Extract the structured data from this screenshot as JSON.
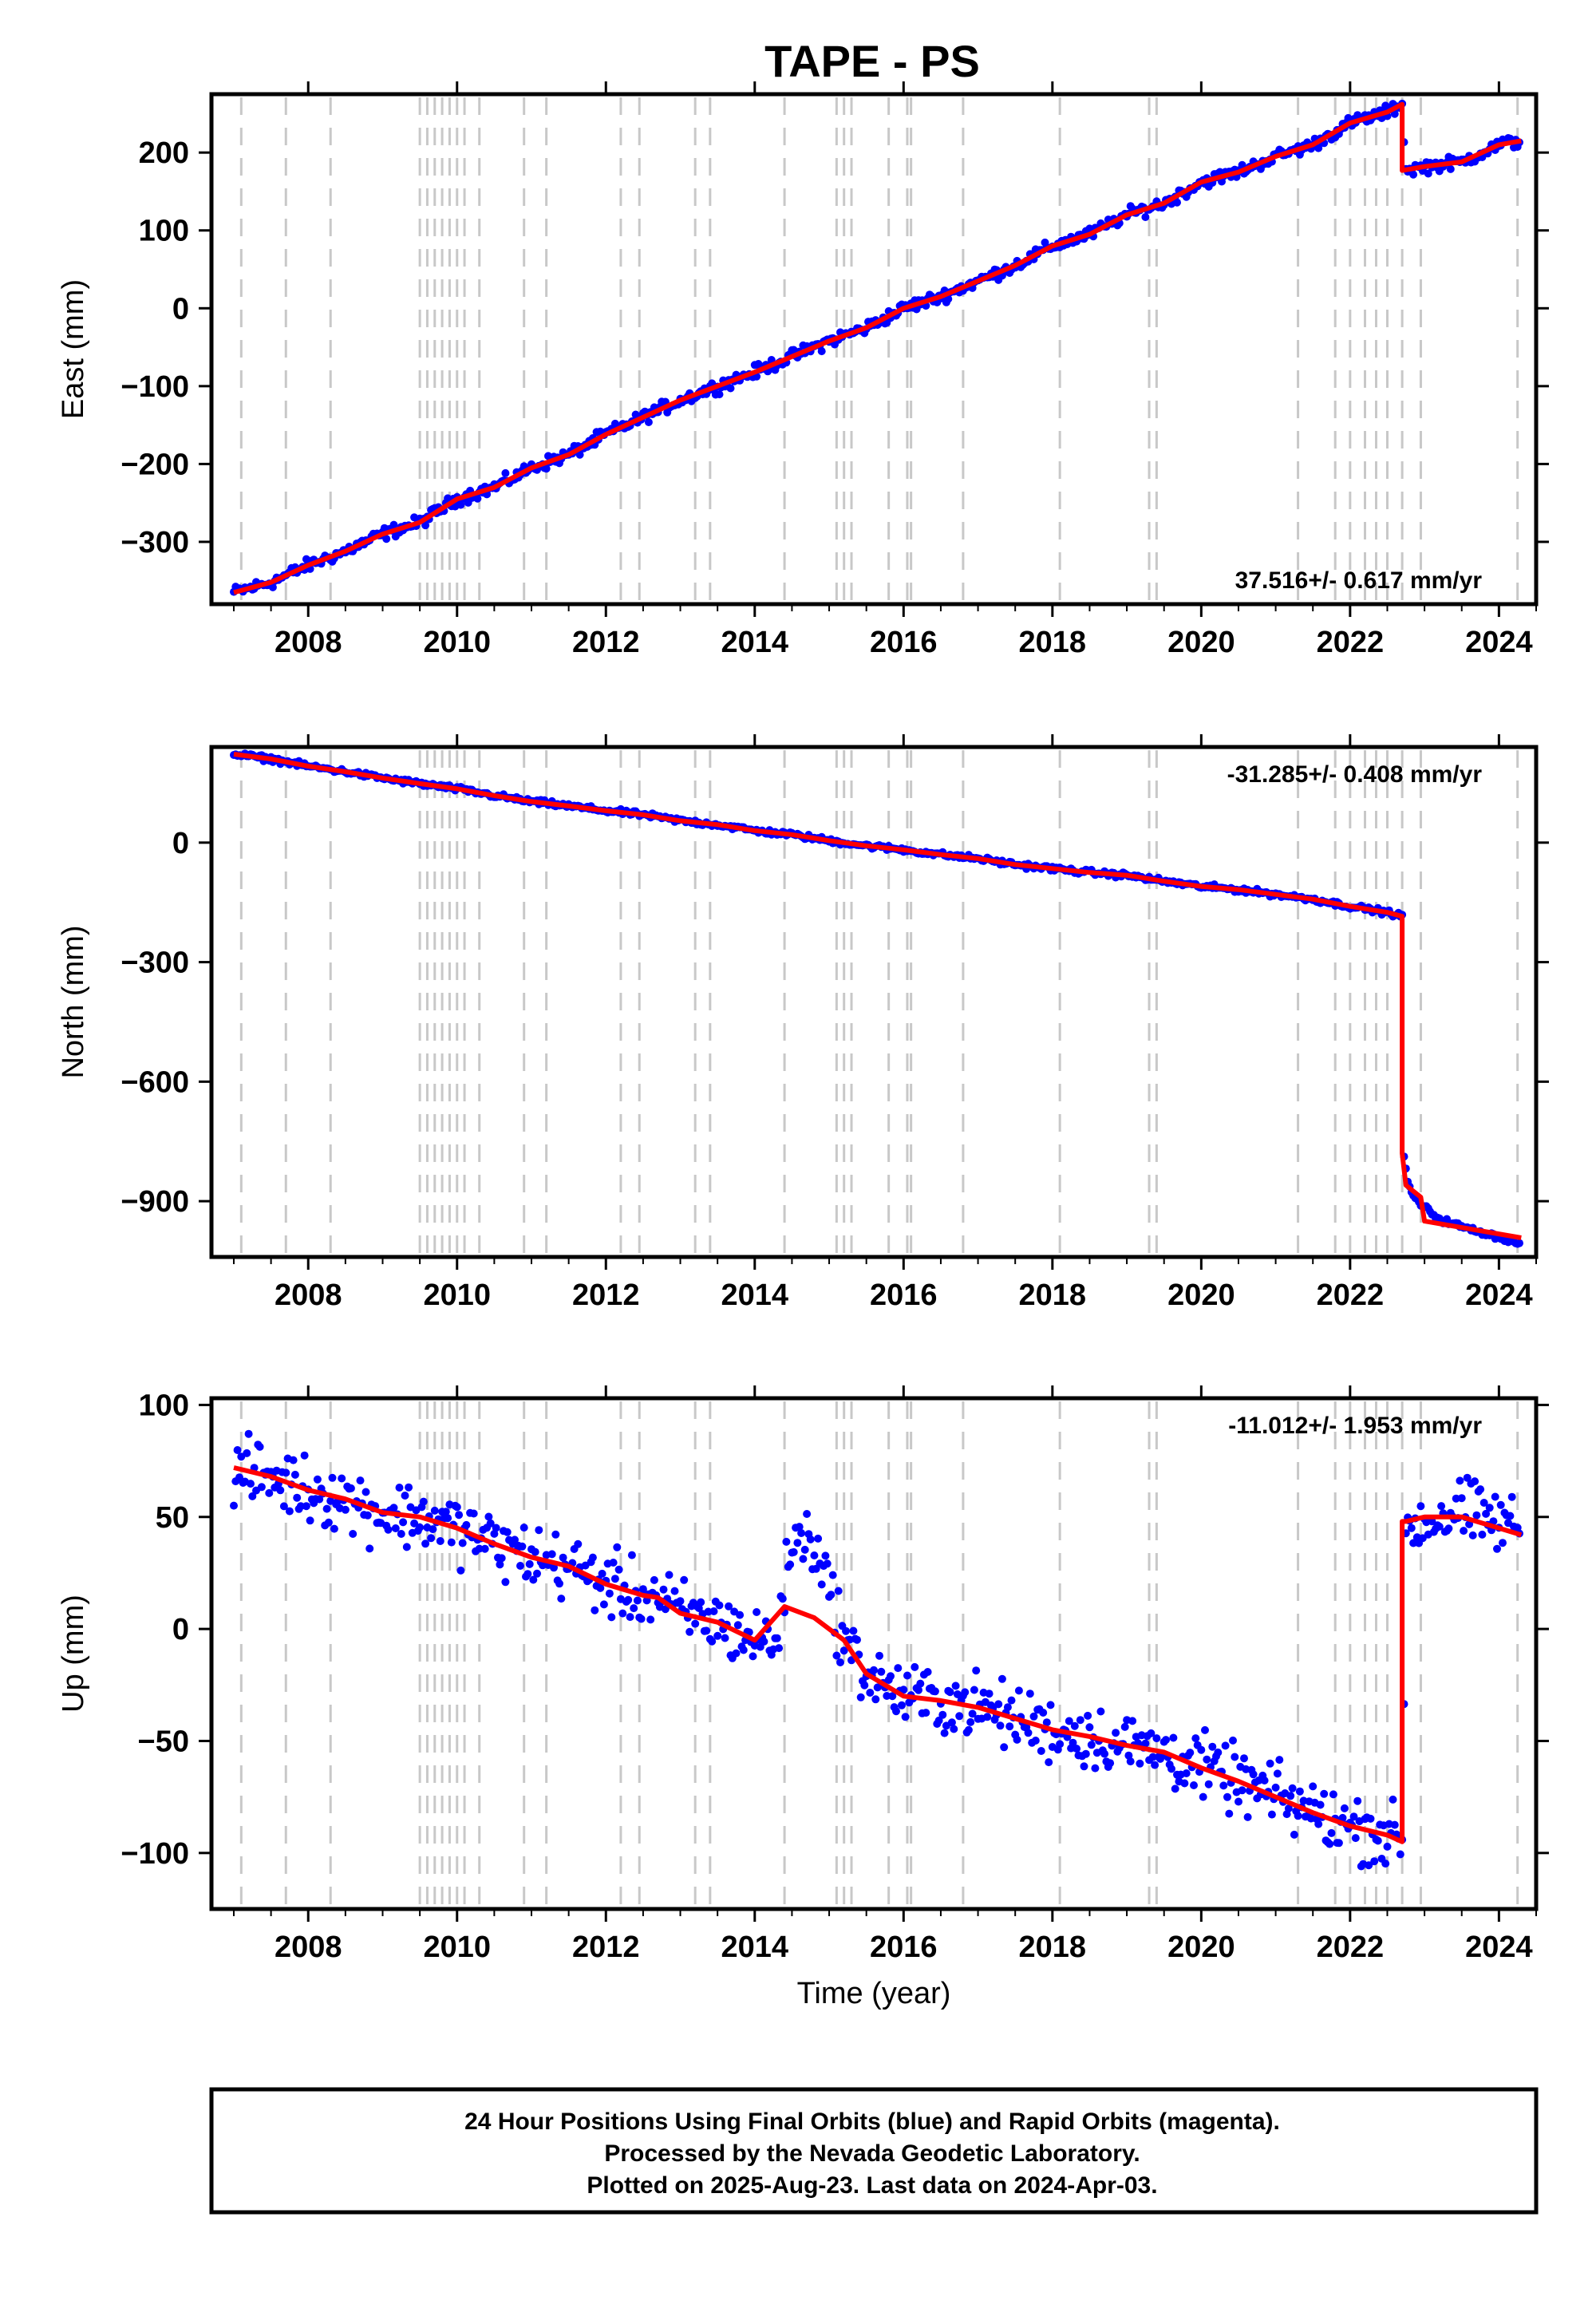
{
  "page_title": "TAPE - PS",
  "footer": {
    "line1": "24 Hour Positions Using Final Orbits (blue) and Rapid Orbits (magenta).",
    "line2": "Processed by the Nevada Geodetic Laboratory.",
    "line3": "Plotted on 2025-Aug-23. Last data on 2024-Apr-03."
  },
  "colors": {
    "data": "#0000ff",
    "model": "#ff0000",
    "event_lines": "#c8c8c8",
    "frame": "#000000"
  },
  "chart_data": [
    {
      "type": "scatter",
      "title": "TAPE - PS",
      "xlabel": "",
      "ylabel": "East (mm)",
      "xlim": [
        2006.7,
        2024.5
      ],
      "ylim": [
        -380,
        275
      ],
      "xticks": [
        2008,
        2010,
        2012,
        2014,
        2016,
        2018,
        2020,
        2022,
        2024
      ],
      "yticks": [
        -300,
        -200,
        -100,
        0,
        100,
        200
      ],
      "rate_label": "37.516+/- 0.617 mm/yr",
      "event_lines_x": [
        2007.1,
        2007.7,
        2008.3,
        2009.5,
        2009.6,
        2009.7,
        2009.8,
        2009.9,
        2010.0,
        2010.1,
        2010.3,
        2010.9,
        2011.2,
        2012.2,
        2012.45,
        2013.2,
        2013.4,
        2014.4,
        2015.1,
        2015.2,
        2015.3,
        2015.8,
        2016.05,
        2016.1,
        2016.8,
        2018.1,
        2019.3,
        2019.4,
        2021.3,
        2021.8,
        2022.0,
        2022.2,
        2022.35,
        2022.5,
        2022.7,
        2022.95,
        2024.25
      ],
      "series": [
        {
          "kind": "observed",
          "x": [
            2007.0,
            2007.5,
            2008.0,
            2008.5,
            2009.0,
            2009.5,
            2010.0,
            2010.5,
            2011.0,
            2011.5,
            2012.0,
            2012.5,
            2013.0,
            2013.5,
            2014.0,
            2014.5,
            2015.0,
            2015.5,
            2016.0,
            2016.5,
            2017.0,
            2017.5,
            2018.0,
            2018.5,
            2019.0,
            2019.5,
            2020.0,
            2020.5,
            2021.0,
            2021.5,
            2022.0,
            2022.5,
            2022.7,
            2022.75,
            2023.0,
            2023.5,
            2024.0,
            2024.3
          ],
          "y": [
            -365,
            -352,
            -330,
            -312,
            -290,
            -275,
            -245,
            -230,
            -205,
            -188,
            -162,
            -140,
            -118,
            -100,
            -82,
            -62,
            -42,
            -25,
            0,
            15,
            35,
            55,
            80,
            95,
            120,
            135,
            162,
            175,
            195,
            210,
            238,
            252,
            262,
            177,
            182,
            188,
            210,
            215
          ],
          "noise": 5
        },
        {
          "kind": "model",
          "x": [
            2007.0,
            2007.5,
            2008.0,
            2008.5,
            2009.0,
            2009.5,
            2010.0,
            2010.5,
            2011.0,
            2011.5,
            2012.0,
            2012.5,
            2013.0,
            2013.5,
            2014.0,
            2014.5,
            2015.0,
            2015.5,
            2016.0,
            2016.5,
            2017.0,
            2017.5,
            2018.0,
            2018.5,
            2019.0,
            2019.5,
            2020.0,
            2020.5,
            2021.0,
            2021.5,
            2022.0,
            2022.5,
            2022.7,
            2022.7,
            2023.0,
            2023.5,
            2024.0,
            2024.3
          ],
          "y": [
            -365,
            -352,
            -330,
            -312,
            -290,
            -275,
            -245,
            -230,
            -205,
            -188,
            -162,
            -140,
            -118,
            -100,
            -82,
            -62,
            -42,
            -25,
            0,
            15,
            35,
            55,
            80,
            95,
            120,
            135,
            162,
            175,
            195,
            210,
            238,
            252,
            262,
            177,
            182,
            188,
            210,
            215
          ]
        }
      ]
    },
    {
      "type": "scatter",
      "title": "",
      "xlabel": "",
      "ylabel": "North (mm)",
      "xlim": [
        2006.7,
        2024.5
      ],
      "ylim": [
        -1040,
        240
      ],
      "xticks": [
        2008,
        2010,
        2012,
        2014,
        2016,
        2018,
        2020,
        2022,
        2024
      ],
      "yticks": [
        -900,
        -600,
        -300,
        0
      ],
      "rate_label": "-31.285+/- 0.408 mm/yr",
      "event_lines_x": [
        2007.1,
        2007.7,
        2008.3,
        2009.5,
        2009.6,
        2009.7,
        2009.8,
        2009.9,
        2010.0,
        2010.1,
        2010.3,
        2010.9,
        2011.2,
        2012.2,
        2012.45,
        2013.2,
        2013.4,
        2014.4,
        2015.1,
        2015.2,
        2015.3,
        2015.8,
        2016.05,
        2016.1,
        2016.8,
        2018.1,
        2019.3,
        2019.4,
        2021.3,
        2021.8,
        2022.0,
        2022.2,
        2022.35,
        2022.5,
        2022.7,
        2022.95,
        2024.25
      ],
      "series": [
        {
          "kind": "observed",
          "x": [
            2007.0,
            2007.5,
            2008.0,
            2008.5,
            2009.0,
            2009.5,
            2010.0,
            2010.5,
            2011.0,
            2011.5,
            2012.0,
            2012.5,
            2013.0,
            2013.5,
            2014.0,
            2014.5,
            2015.0,
            2015.5,
            2016.0,
            2016.5,
            2017.0,
            2017.5,
            2018.0,
            2018.5,
            2019.0,
            2019.5,
            2020.0,
            2020.5,
            2021.0,
            2021.5,
            2022.0,
            2022.5,
            2022.7,
            2022.72,
            2022.78,
            2022.9,
            2023.2,
            2023.6,
            2024.0,
            2024.3
          ],
          "y": [
            222,
            210,
            192,
            178,
            162,
            148,
            135,
            118,
            103,
            92,
            80,
            70,
            55,
            45,
            30,
            20,
            5,
            -8,
            -18,
            -30,
            -40,
            -55,
            -65,
            -75,
            -82,
            -97,
            -110,
            -118,
            -130,
            -142,
            -160,
            -175,
            -185,
            -780,
            -860,
            -900,
            -945,
            -970,
            -990,
            -1010
          ],
          "noise": 4
        },
        {
          "kind": "model",
          "x": [
            2007.0,
            2007.5,
            2008.0,
            2008.5,
            2009.0,
            2009.5,
            2010.0,
            2010.5,
            2011.0,
            2011.5,
            2012.0,
            2012.5,
            2013.0,
            2013.5,
            2014.0,
            2014.5,
            2015.0,
            2015.5,
            2016.0,
            2016.5,
            2017.0,
            2017.5,
            2018.0,
            2018.5,
            2019.0,
            2019.5,
            2020.0,
            2020.5,
            2021.0,
            2021.5,
            2022.0,
            2022.5,
            2022.7,
            2022.7,
            2022.75,
            2022.95,
            2023.0,
            2024.3
          ],
          "y": [
            222,
            210,
            192,
            178,
            162,
            148,
            135,
            118,
            103,
            92,
            80,
            70,
            55,
            45,
            30,
            20,
            5,
            -8,
            -18,
            -30,
            -40,
            -55,
            -65,
            -75,
            -82,
            -97,
            -110,
            -118,
            -130,
            -142,
            -160,
            -175,
            -185,
            -780,
            -860,
            -890,
            -950,
            -992
          ]
        }
      ]
    },
    {
      "type": "scatter",
      "title": "",
      "xlabel": "Time (year)",
      "ylabel": "Up (mm)",
      "xlim": [
        2006.7,
        2024.5
      ],
      "ylim": [
        -125,
        103
      ],
      "xticks": [
        2008,
        2010,
        2012,
        2014,
        2016,
        2018,
        2020,
        2022,
        2024
      ],
      "yticks": [
        -100,
        -50,
        0,
        50,
        100
      ],
      "rate_label": "-11.012+/- 1.953 mm/yr",
      "event_lines_x": [
        2007.1,
        2007.7,
        2008.3,
        2009.5,
        2009.6,
        2009.7,
        2009.8,
        2009.9,
        2010.0,
        2010.1,
        2010.3,
        2010.9,
        2011.2,
        2012.2,
        2012.45,
        2013.2,
        2013.4,
        2014.4,
        2015.1,
        2015.2,
        2015.3,
        2015.8,
        2016.05,
        2016.1,
        2016.8,
        2018.1,
        2019.3,
        2019.4,
        2021.3,
        2021.8,
        2022.0,
        2022.2,
        2022.35,
        2022.5,
        2022.7,
        2022.95,
        2024.25
      ],
      "series": [
        {
          "kind": "observed",
          "x": [
            2007.0,
            2007.5,
            2008.0,
            2008.5,
            2009.0,
            2009.5,
            2010.0,
            2010.5,
            2011.0,
            2011.5,
            2012.0,
            2012.5,
            2012.7,
            2013.0,
            2013.5,
            2014.0,
            2014.3,
            2014.5,
            2014.8,
            2015.2,
            2015.5,
            2016.0,
            2016.5,
            2017.0,
            2017.5,
            2018.0,
            2018.5,
            2019.0,
            2019.5,
            2020.0,
            2020.5,
            2021.0,
            2021.5,
            2022.0,
            2022.5,
            2022.7,
            2022.75,
            2023.0,
            2023.5,
            2024.0,
            2024.3
          ],
          "y": [
            70,
            68,
            62,
            58,
            52,
            50,
            45,
            38,
            32,
            28,
            20,
            15,
            14,
            7,
            3,
            -5,
            -5,
            40,
            40,
            -5,
            -20,
            -30,
            -32,
            -35,
            -40,
            -45,
            -48,
            -52,
            -55,
            -62,
            -68,
            -75,
            -82,
            -88,
            -92,
            -95,
            45,
            48,
            52,
            48,
            45
          ],
          "noise": 9
        },
        {
          "kind": "model",
          "x": [
            2007.0,
            2007.5,
            2008.0,
            2008.5,
            2009.0,
            2009.5,
            2010.0,
            2010.5,
            2011.0,
            2011.5,
            2012.0,
            2012.5,
            2012.7,
            2013.0,
            2013.5,
            2014.0,
            2014.4,
            2014.8,
            2015.2,
            2015.5,
            2016.0,
            2016.5,
            2017.0,
            2017.5,
            2018.0,
            2018.5,
            2019.0,
            2019.5,
            2020.0,
            2020.5,
            2021.0,
            2021.5,
            2022.0,
            2022.5,
            2022.7,
            2022.7,
            2022.75,
            2023.0,
            2023.5,
            2024.0,
            2024.3
          ],
          "y": [
            72,
            68,
            62,
            58,
            52,
            50,
            45,
            38,
            32,
            28,
            20,
            15,
            14,
            7,
            3,
            -5,
            10,
            5,
            -5,
            -20,
            -30,
            -32,
            -35,
            -40,
            -45,
            -48,
            -52,
            -55,
            -62,
            -68,
            -75,
            -82,
            -88,
            -92,
            -95,
            48,
            48,
            50,
            50,
            45,
            42
          ]
        }
      ]
    }
  ]
}
